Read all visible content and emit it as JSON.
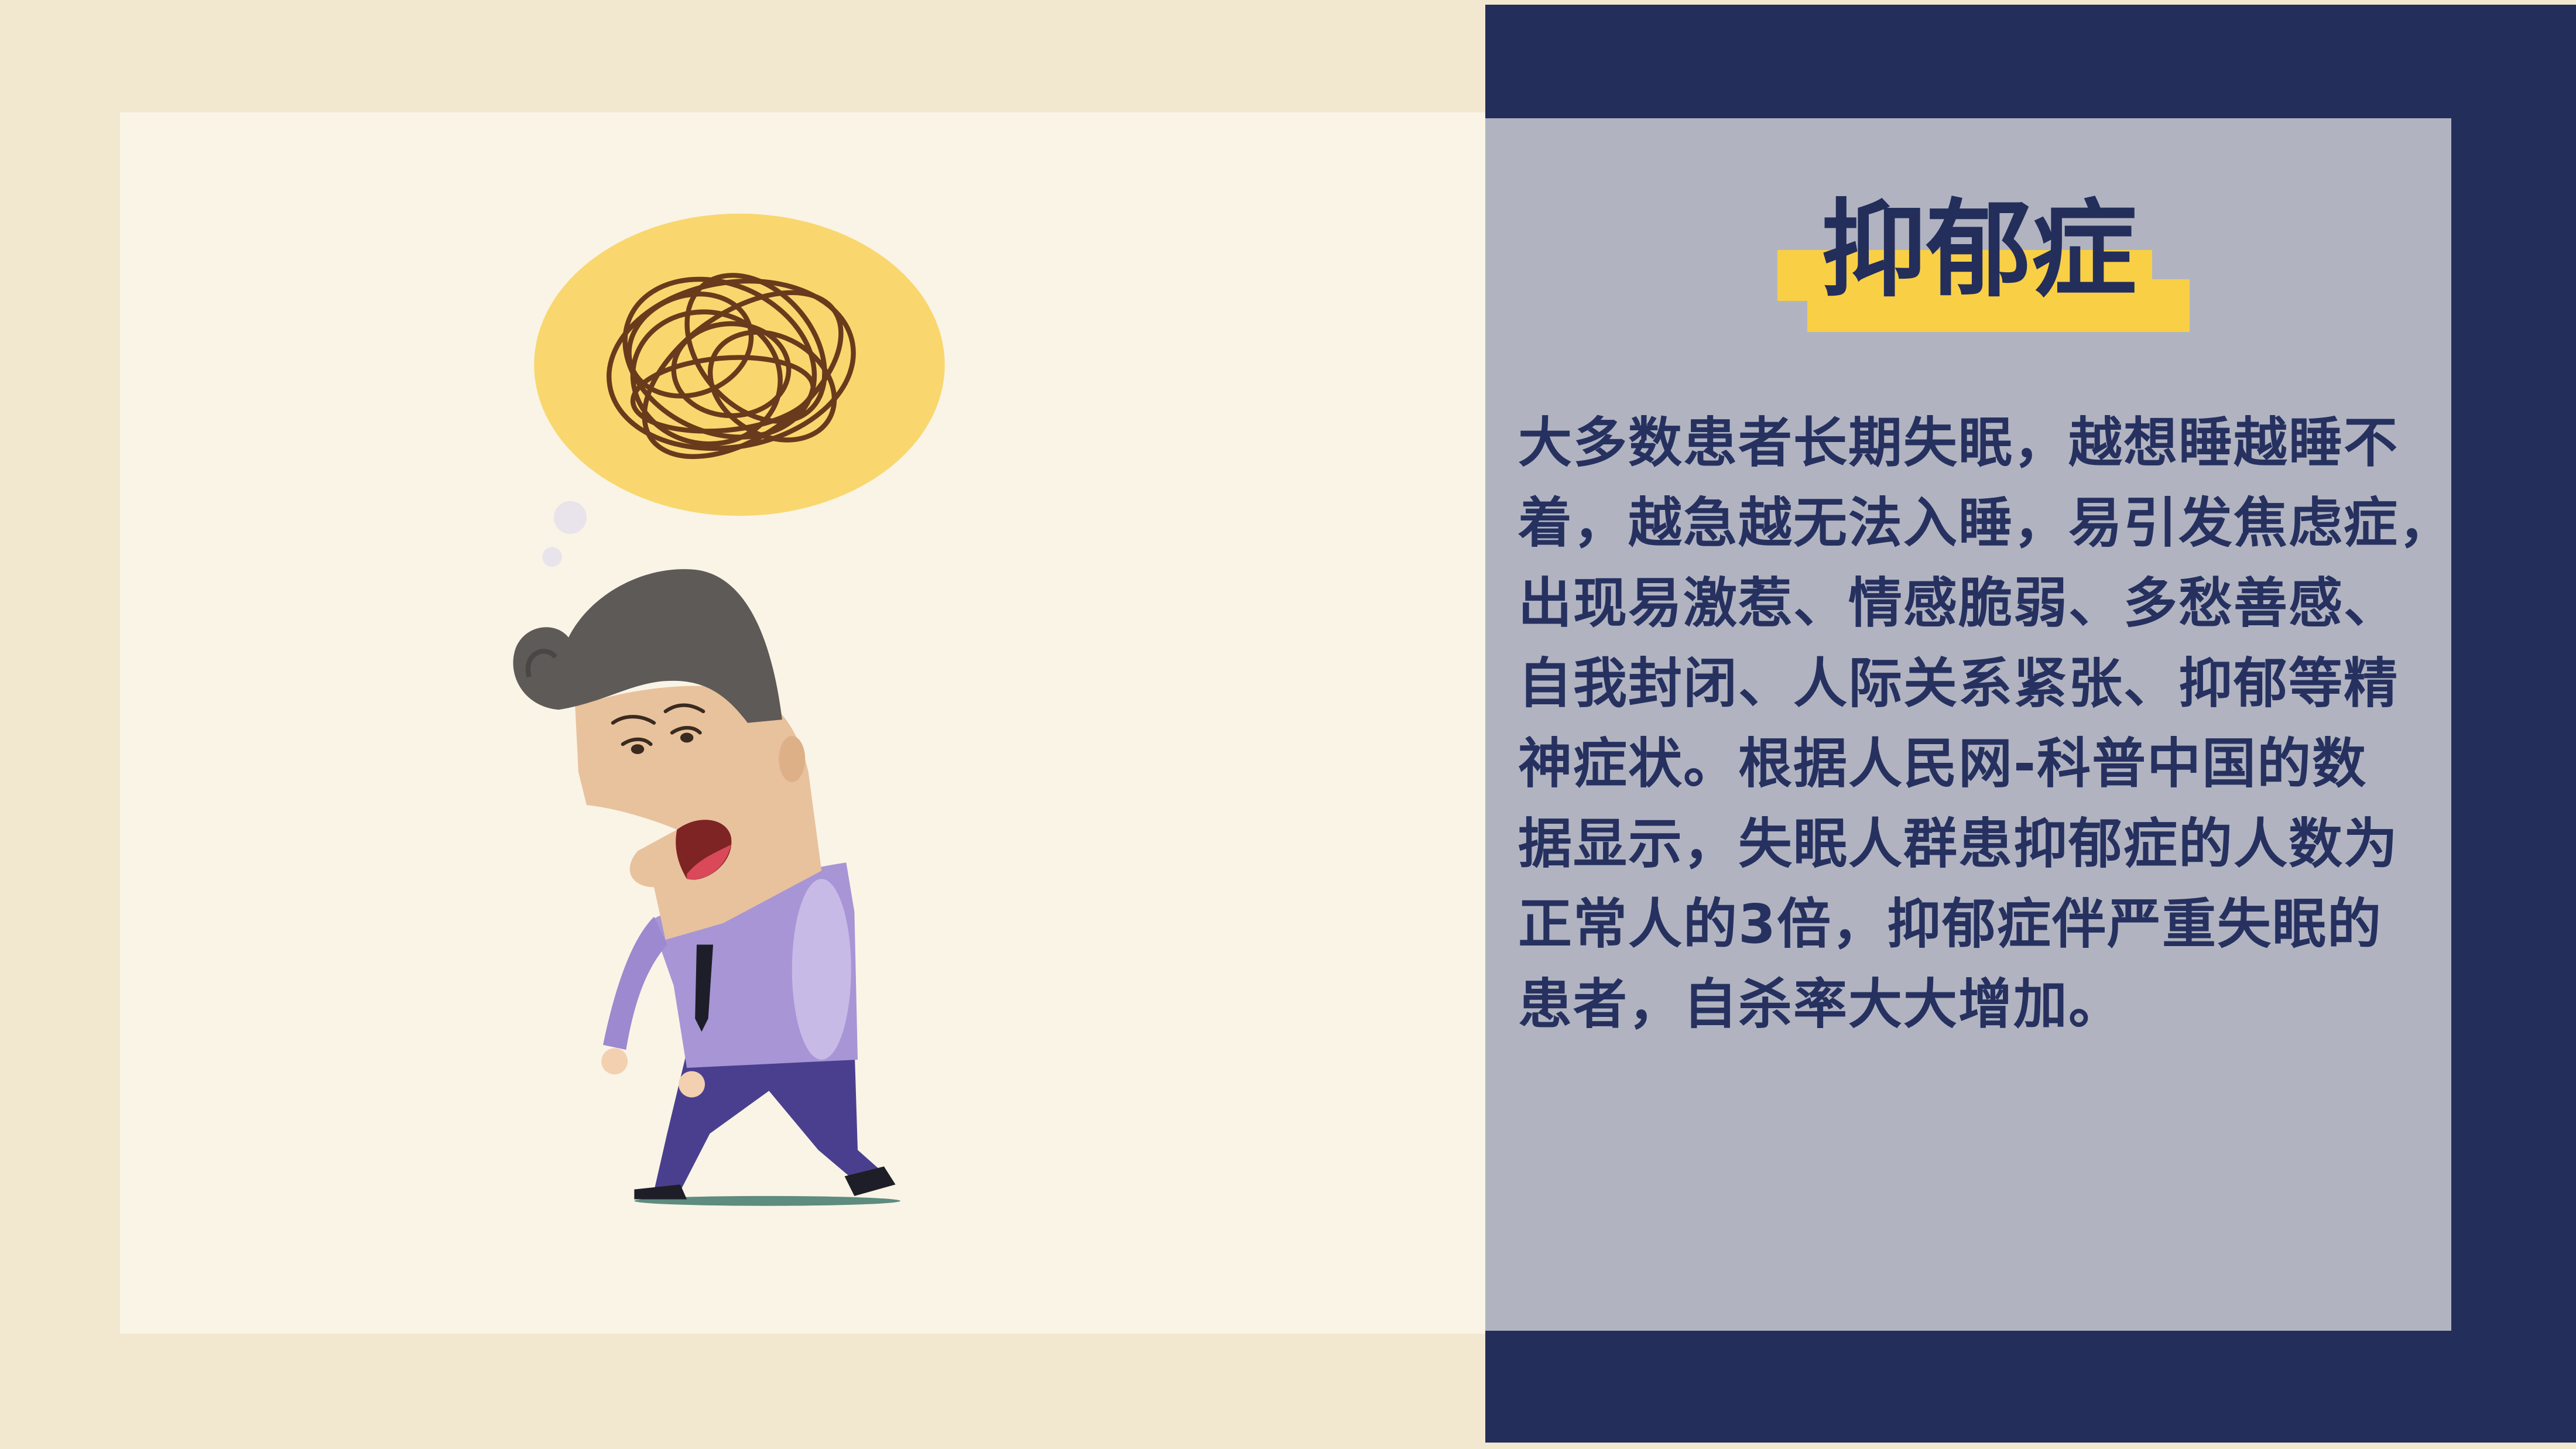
{
  "slide": {
    "title": "抑郁症",
    "body_lines": [
      "大多数患者长期失眠，越想睡越睡不",
      "着，越急越无法入睡，易引发焦虑症，",
      "出现易激惹、情感脆弱、多愁善感、",
      "自我封闭、人际关系紧张、抑郁等精",
      "神症状。根据人民网-科普中国的数",
      "据显示，失眠人群患抑郁症的人数为",
      "正常人的3倍，抑郁症伴严重失眠的",
      "患者，自杀率大大增加。"
    ]
  },
  "colors": {
    "background": "#F2E8CF",
    "left_panel": "#F9F4E6",
    "navy_frame": "#232E5B",
    "grey_panel": "#B1B4C0",
    "title_highlight": "#F9CF46",
    "text": "#263160",
    "thought_bubble": "#F9D76E",
    "scribble": "#6A3A1C",
    "shirt": "#A795D6",
    "pants": "#4A3F8F",
    "hair": "#5E5A58",
    "skin": "#E8C29D"
  }
}
